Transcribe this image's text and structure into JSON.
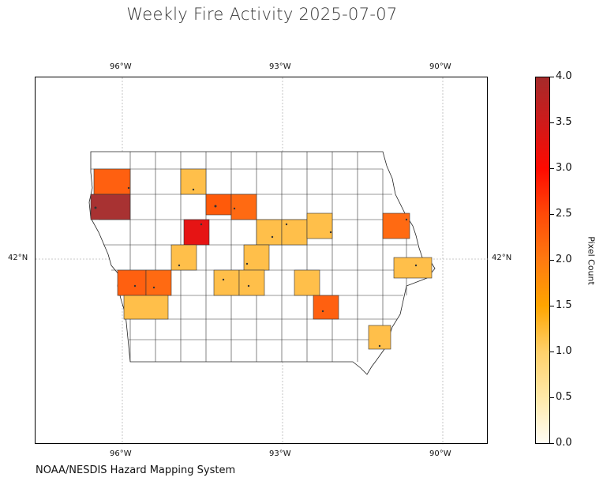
{
  "title": "Weekly Fire Activity 2025-07-07",
  "source": "NOAA/NESDIS Hazard Mapping System",
  "map": {
    "region": "Iowa counties",
    "gridlines": "dashed gray",
    "lon_ticks_top": [
      "96°W",
      "93°W",
      "90°W"
    ],
    "lon_ticks_bottom": [
      "96°W",
      "93°W",
      "90°W"
    ],
    "lat_tick_left": "42°N",
    "lat_tick_right": "42°N"
  },
  "colorbar": {
    "label": "Pixel Count",
    "ticks": [
      "0.0",
      "0.5",
      "1.0",
      "1.5",
      "2.0",
      "2.5",
      "3.0",
      "3.5",
      "4.0"
    ],
    "range": [
      0,
      4
    ],
    "colors": [
      "#fffdf5",
      "#ffd06a",
      "#ffa500",
      "#ff7a10",
      "#ff0a00",
      "#a52a2a"
    ]
  },
  "fire_counties": [
    {
      "name": "county-nw-1",
      "value": 2
    },
    {
      "name": "county-nw-2",
      "value": 1
    },
    {
      "name": "county-west-border",
      "value": 4
    },
    {
      "name": "county-north-central-1",
      "value": 2
    },
    {
      "name": "county-north-central-2",
      "value": 2
    },
    {
      "name": "county-central-red",
      "value": 3
    },
    {
      "name": "county-central-1",
      "value": 1
    },
    {
      "name": "county-central-2",
      "value": 1
    },
    {
      "name": "county-central-3",
      "value": 1
    },
    {
      "name": "county-east-1",
      "value": 2
    },
    {
      "name": "county-east-2",
      "value": 1
    },
    {
      "name": "county-sw-1",
      "value": 2
    },
    {
      "name": "county-sw-2",
      "value": 2
    },
    {
      "name": "county-sw-3",
      "value": 1
    },
    {
      "name": "county-south-central-1",
      "value": 1
    },
    {
      "name": "county-south-central-2",
      "value": 1
    },
    {
      "name": "county-south-central-3",
      "value": 1
    },
    {
      "name": "county-south-central-4",
      "value": 1
    },
    {
      "name": "county-south-east-1",
      "value": 2
    },
    {
      "name": "county-se-1",
      "value": 1
    }
  ]
}
